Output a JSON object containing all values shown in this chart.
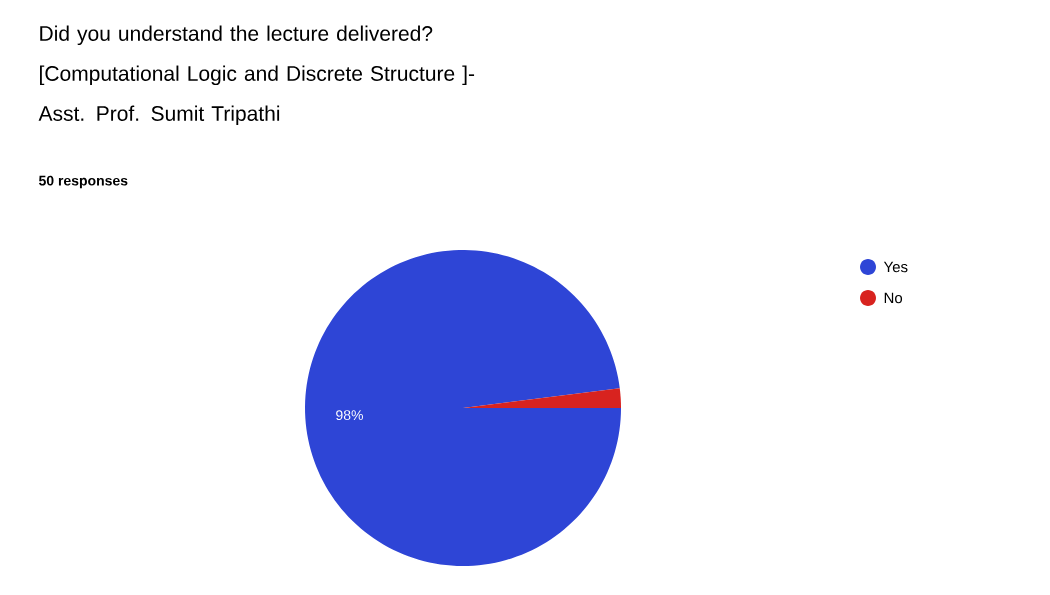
{
  "chart_data": {
    "type": "pie",
    "title": "Did you understand the lecture delivered?\n[Computational Logic and Discrete Structure ]-\nAsst. Prof. Sumit Tripathi",
    "subtitle": "50 responses",
    "categories": [
      "Yes",
      "No"
    ],
    "values": [
      98,
      2
    ],
    "colors": [
      "#2e45d6",
      "#d8231f"
    ],
    "value_labels": [
      "98%",
      null
    ],
    "legend": "top right"
  }
}
